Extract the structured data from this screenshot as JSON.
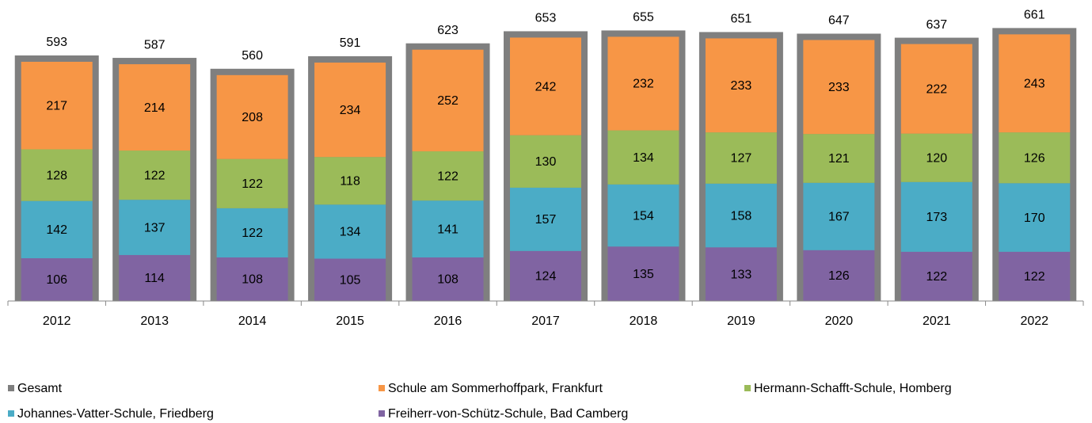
{
  "chart_data": {
    "type": "bar",
    "stacked": true,
    "legend": "bottom",
    "categories": [
      "2012",
      "2013",
      "2014",
      "2015",
      "2016",
      "2017",
      "2018",
      "2019",
      "2020",
      "2021",
      "2022"
    ],
    "series": [
      {
        "name": "Gesamt",
        "color": "#7f7f7f",
        "values": [
          593,
          587,
          560,
          591,
          623,
          653,
          655,
          651,
          647,
          637,
          661
        ]
      },
      {
        "name": "Schule am Sommerhoffpark, Frankfurt",
        "color": "#f79646",
        "values": [
          217,
          214,
          208,
          234,
          252,
          242,
          232,
          233,
          233,
          222,
          243
        ]
      },
      {
        "name": "Hermann-Schafft-Schule, Homberg",
        "color": "#9bbb59",
        "values": [
          128,
          122,
          122,
          118,
          122,
          130,
          134,
          127,
          121,
          120,
          126
        ]
      },
      {
        "name": "Johannes-Vatter-Schule, Friedberg",
        "color": "#4bacc6",
        "values": [
          142,
          137,
          122,
          134,
          141,
          157,
          154,
          158,
          167,
          173,
          170
        ]
      },
      {
        "name": "Freiherr-von-Schütz-Schule, Bad Camberg",
        "color": "#8064a2",
        "values": [
          106,
          114,
          108,
          105,
          108,
          124,
          135,
          133,
          126,
          122,
          122
        ]
      }
    ]
  }
}
